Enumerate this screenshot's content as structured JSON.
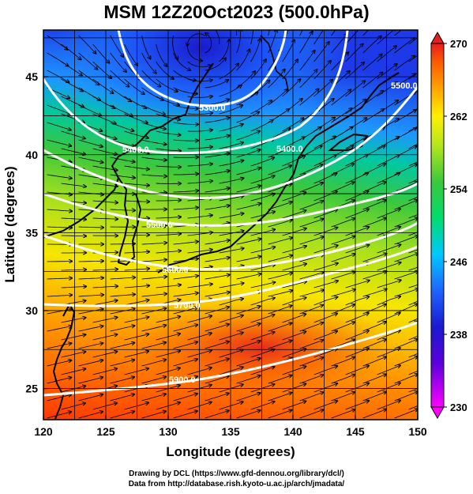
{
  "title": "MSM 12Z20Oct2023 (500.0hPa)",
  "x_axis": {
    "label": "Longitude (degrees)",
    "ticks": [
      "120",
      "125",
      "130",
      "135",
      "140",
      "145",
      "150"
    ]
  },
  "y_axis": {
    "label": "Latitude  (degrees)",
    "ticks": [
      "45",
      "40",
      "35",
      "30",
      "25"
    ]
  },
  "colorbar": {
    "ticks": [
      "270",
      "262",
      "254",
      "246",
      "238",
      "230"
    ]
  },
  "contour_labels": [
    "5300.0",
    "5400.0",
    "5500.0",
    "5600.0",
    "5700.0",
    "5800.0",
    "5900.0"
  ],
  "credit": {
    "line1": "Drawing by DCL (https://www.gfd-dennou.org/library/dcl/)",
    "line2": "Data from http://database.rish.kyoto-u.ac.jp/arch/jmadata/"
  },
  "map_data": {
    "type": "temperature-field-with-geopotential-contours-and-streamlines",
    "lon_range": [
      120,
      150
    ],
    "lat_range": [
      23,
      48
    ],
    "field_range": [
      230,
      270
    ],
    "colormap": [
      "#ff00ff",
      "#1a1acd",
      "#1e64ff",
      "#00c8ff",
      "#00dc6e",
      "#3cc83c",
      "#b4e61e",
      "#fff000",
      "#ffa000",
      "#ff5a00",
      "#e61e1e"
    ]
  }
}
